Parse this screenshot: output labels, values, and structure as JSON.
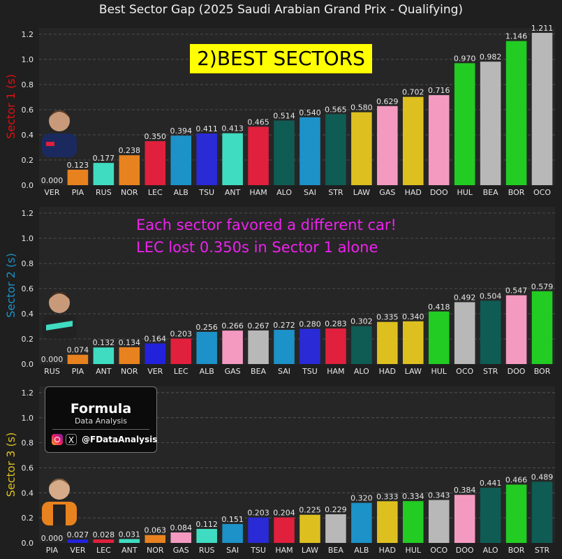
{
  "chart_data": {
    "type": "bar",
    "title": "Best Sector Gap (2025 Saudi Arabian Grand Prix - Qualifying)",
    "ylim": [
      0,
      1.25
    ],
    "yticks": [
      "0.0",
      "0.2",
      "0.4",
      "0.6",
      "0.8",
      "1.0",
      "1.2"
    ],
    "grid": true,
    "panels": [
      {
        "ylabel": "Sector 1 (s)",
        "ylabel_color": "#e01010",
        "categories": [
          "VER",
          "PIA",
          "RUS",
          "NOR",
          "LEC",
          "ALB",
          "TSU",
          "ANT",
          "HAM",
          "ALO",
          "SAI",
          "STR",
          "LAW",
          "GAS",
          "HAD",
          "DOO",
          "HUL",
          "BEA",
          "BOR",
          "OCO"
        ],
        "values": [
          0.0,
          0.123,
          0.177,
          0.238,
          0.35,
          0.394,
          0.411,
          0.413,
          0.465,
          0.514,
          0.54,
          0.565,
          0.58,
          0.629,
          0.702,
          0.716,
          0.97,
          0.982,
          1.146,
          1.211
        ],
        "colors": [
          "#2222dd",
          "#e8821e",
          "#3fdcc1",
          "#e8821e",
          "#e0203c",
          "#1c92c8",
          "#2a2ad6",
          "#3fdcc1",
          "#e0203c",
          "#0f5c54",
          "#1c92c8",
          "#0f5c54",
          "#ddc020",
          "#f49ac1",
          "#ddc020",
          "#f49ac1",
          "#22cc22",
          "#b8b8b8",
          "#22cc22",
          "#b8b8b8"
        ],
        "labels": [
          "0.000",
          "0.123",
          "0.177",
          "0.238",
          "0.350",
          "0.394",
          "0.411",
          "0.413",
          "0.465",
          "0.514",
          "0.540",
          "0.565",
          "0.580",
          "0.629",
          "0.702",
          "0.716",
          "0.970",
          "0.982",
          "1.146",
          "1.211"
        ]
      },
      {
        "ylabel": "Sector 2 (s)",
        "ylabel_color": "#1c92c8",
        "categories": [
          "RUS",
          "PIA",
          "ANT",
          "NOR",
          "VER",
          "LEC",
          "ALB",
          "GAS",
          "BEA",
          "SAI",
          "TSU",
          "HAM",
          "ALO",
          "HAD",
          "LAW",
          "HUL",
          "OCO",
          "STR",
          "DOO",
          "BOR"
        ],
        "values": [
          0.0,
          0.074,
          0.132,
          0.134,
          0.164,
          0.203,
          0.256,
          0.266,
          0.267,
          0.272,
          0.28,
          0.283,
          0.302,
          0.335,
          0.34,
          0.418,
          0.492,
          0.504,
          0.547,
          0.579
        ],
        "colors": [
          "#3fdcc1",
          "#e8821e",
          "#3fdcc1",
          "#e8821e",
          "#2222dd",
          "#e0203c",
          "#1c92c8",
          "#f49ac1",
          "#b8b8b8",
          "#1c92c8",
          "#2a2ad6",
          "#e0203c",
          "#0f5c54",
          "#ddc020",
          "#ddc020",
          "#22cc22",
          "#b8b8b8",
          "#0f5c54",
          "#f49ac1",
          "#22cc22"
        ],
        "labels": [
          "0.000",
          "0.074",
          "0.132",
          "0.134",
          "0.164",
          "0.203",
          "0.256",
          "0.266",
          "0.267",
          "0.272",
          "0.280",
          "0.283",
          "0.302",
          "0.335",
          "0.340",
          "0.418",
          "0.492",
          "0.504",
          "0.547",
          "0.579"
        ]
      },
      {
        "ylabel": "Sector 3 (s)",
        "ylabel_color": "#ddc020",
        "categories": [
          "PIA",
          "VER",
          "LEC",
          "ANT",
          "NOR",
          "GAS",
          "RUS",
          "SAI",
          "TSU",
          "HAM",
          "LAW",
          "BEA",
          "ALB",
          "HAD",
          "HUL",
          "OCO",
          "DOO",
          "ALO",
          "BOR",
          "STR"
        ],
        "values": [
          0.0,
          0.027,
          0.028,
          0.031,
          0.063,
          0.084,
          0.112,
          0.151,
          0.203,
          0.204,
          0.225,
          0.229,
          0.32,
          0.333,
          0.334,
          0.343,
          0.384,
          0.441,
          0.466,
          0.489
        ],
        "colors": [
          "#e8821e",
          "#2222dd",
          "#e0203c",
          "#3fdcc1",
          "#e8821e",
          "#f49ac1",
          "#3fdcc1",
          "#1c92c8",
          "#2a2ad6",
          "#e0203c",
          "#ddc020",
          "#b8b8b8",
          "#1c92c8",
          "#ddc020",
          "#22cc22",
          "#b8b8b8",
          "#f49ac1",
          "#0f5c54",
          "#22cc22",
          "#0f5c54"
        ],
        "labels": [
          "0.000",
          "0.027",
          "0.028",
          "0.031",
          "0.063",
          "0.084",
          "0.112",
          "0.151",
          "0.203",
          "0.204",
          "0.225",
          "0.229",
          "0.320",
          "0.333",
          "0.334",
          "0.343",
          "0.384",
          "0.441",
          "0.466",
          "0.489"
        ]
      }
    ]
  },
  "overlay": {
    "banner": "2)BEST SECTORS",
    "annotation_line1": "Each sector favored a different car!",
    "annotation_line2": "LEC lost 0.350s in Sector 1 alone"
  },
  "logo": {
    "name": "Formula",
    "subtitle": "Data Analysis",
    "handle": "@FDataAnalysis",
    "icons": [
      "instagram-icon",
      "x-icon"
    ]
  },
  "colors": {
    "background": "#1f1f1f",
    "grid": "#5a5a5a",
    "text": "#e8e8e8",
    "annotation": "#ee22ee",
    "banner": "#ffff00"
  }
}
